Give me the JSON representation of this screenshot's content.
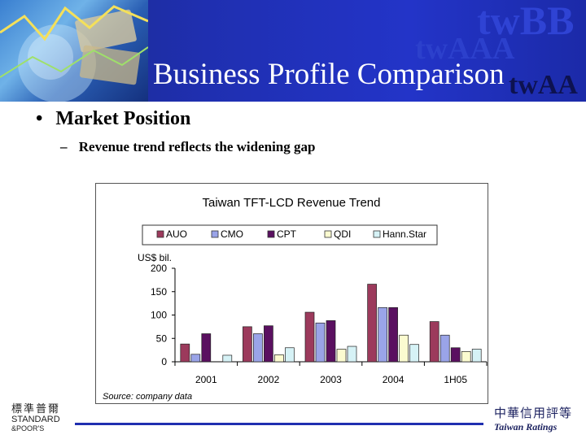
{
  "header": {
    "title": "Business Profile Comparison",
    "watermarks": [
      "twBB",
      "twAAA",
      "twAA"
    ]
  },
  "content": {
    "bullet": "Market Position",
    "bullet_marker": "•",
    "sub_bullet": "Revenue trend reflects the widening gap",
    "sub_bullet_marker": "–"
  },
  "chart_data": {
    "type": "bar",
    "title": "Taiwan TFT-LCD Revenue Trend",
    "ylabel": "US$ bil.",
    "xlabel": "",
    "categories": [
      "2001",
      "2002",
      "2003",
      "2004",
      "1H05"
    ],
    "ylim": [
      0,
      200
    ],
    "yticks": [
      0,
      50,
      100,
      150,
      200
    ],
    "legend_position": "top",
    "grid": false,
    "series": [
      {
        "name": "AUO",
        "color": "#9c3a5c",
        "values": [
          38,
          75,
          106,
          166,
          86
        ]
      },
      {
        "name": "CMO",
        "color": "#9aa4e8",
        "values": [
          16,
          60,
          83,
          116,
          57
        ]
      },
      {
        "name": "CPT",
        "color": "#5a1060",
        "values": [
          60,
          77,
          88,
          116,
          30
        ]
      },
      {
        "name": "QDI",
        "color": "#fbfbd0",
        "values": [
          0,
          15,
          27,
          57,
          22
        ]
      },
      {
        "name": "Hann.Star",
        "color": "#d6f2f6",
        "values": [
          14,
          30,
          33,
          37,
          27
        ]
      }
    ],
    "source": "Source: company data"
  },
  "footer": {
    "sp_chinese": "標準普爾",
    "sp_line1": "STANDARD",
    "sp_line2": "&POOR'S",
    "tr_chinese": "中華信用評等",
    "tr_name": "Taiwan Ratings"
  }
}
